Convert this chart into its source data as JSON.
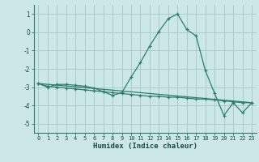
{
  "title": "",
  "xlabel": "Humidex (Indice chaleur)",
  "background_color": "#cce8e6",
  "line_color": "#2e7d6e",
  "grid_color": "#aaccca",
  "x_ticks": [
    0,
    1,
    2,
    3,
    4,
    5,
    6,
    7,
    8,
    9,
    10,
    11,
    12,
    13,
    14,
    15,
    16,
    17,
    18,
    19,
    20,
    21,
    22,
    23
  ],
  "y_ticks": [
    -5,
    -4,
    -3,
    -2,
    -1,
    0,
    1
  ],
  "ylim": [
    -5.5,
    1.5
  ],
  "xlim": [
    -0.5,
    23.5
  ],
  "series1_x": [
    0,
    1,
    2,
    3,
    4,
    5,
    6,
    7,
    8,
    9,
    10,
    11,
    12,
    13,
    14,
    15,
    16,
    17,
    18,
    19,
    20,
    21,
    22,
    23
  ],
  "series1_y": [
    -2.8,
    -3.0,
    -2.85,
    -2.85,
    -2.9,
    -2.95,
    -3.05,
    -3.25,
    -3.45,
    -3.3,
    -2.45,
    -1.65,
    -0.75,
    0.05,
    0.75,
    1.0,
    0.15,
    -0.2,
    -2.1,
    -3.35,
    -4.55,
    -3.85,
    -4.4,
    -3.85
  ],
  "series2_x": [
    0,
    1,
    2,
    3,
    4,
    5,
    6,
    7,
    8,
    9,
    10,
    11,
    12,
    13,
    14,
    15,
    16,
    17,
    18,
    19,
    20,
    21,
    22,
    23
  ],
  "series2_y": [
    -2.8,
    -2.95,
    -3.0,
    -3.05,
    -3.1,
    -3.15,
    -3.2,
    -3.25,
    -3.3,
    -3.35,
    -3.4,
    -3.45,
    -3.5,
    -3.5,
    -3.55,
    -3.55,
    -3.6,
    -3.65,
    -3.65,
    -3.7,
    -3.75,
    -3.8,
    -3.85,
    -3.85
  ],
  "series3_x": [
    0,
    23
  ],
  "series3_y": [
    -2.8,
    -3.85
  ]
}
